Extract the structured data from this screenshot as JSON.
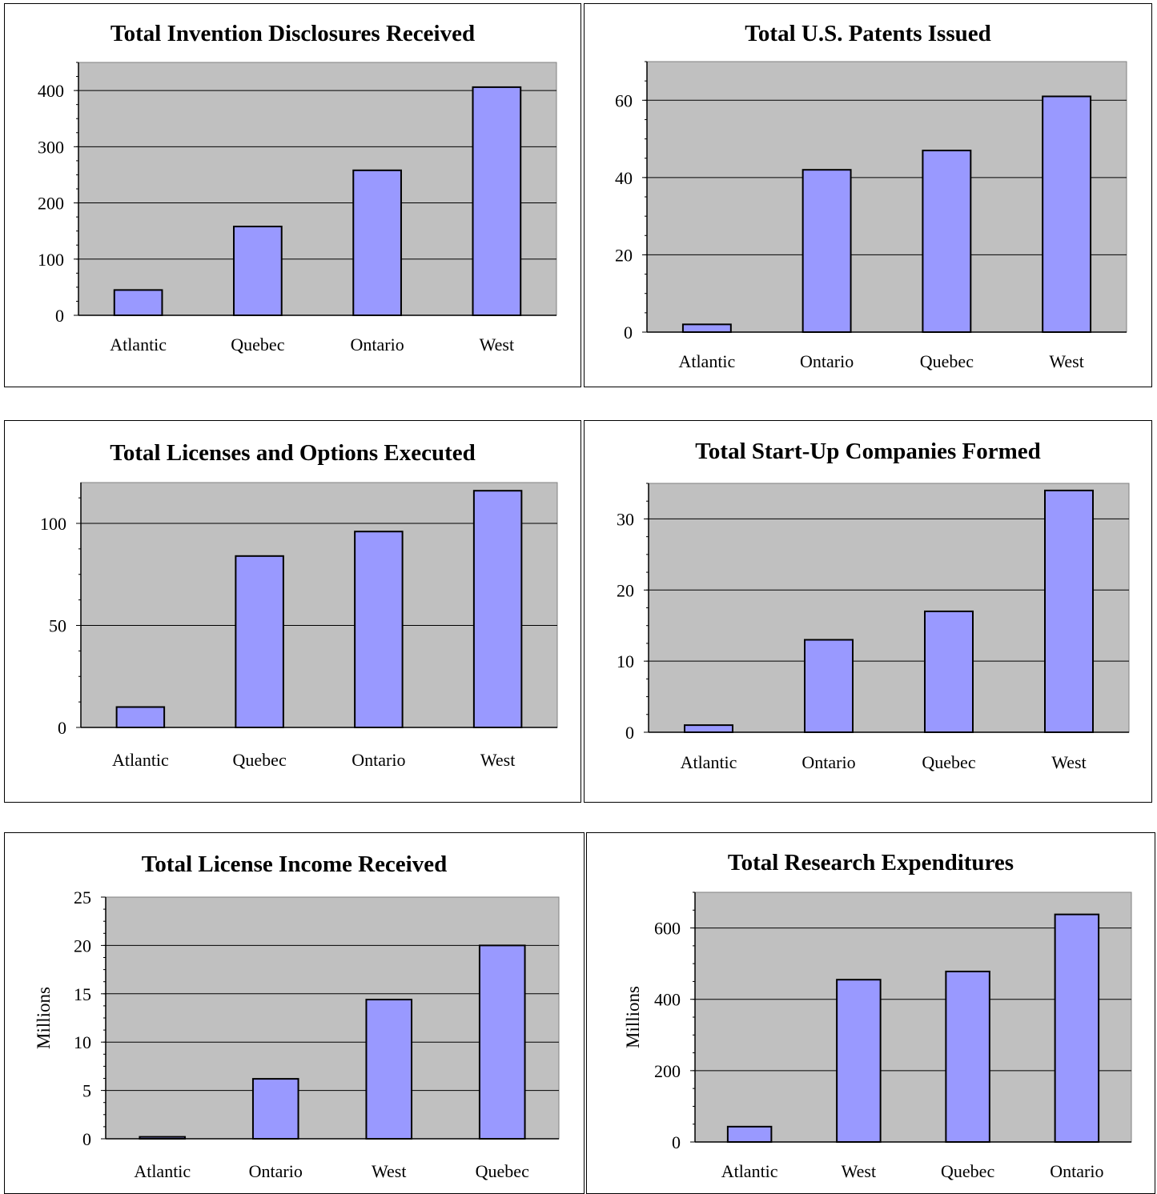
{
  "chart_data": [
    {
      "type": "bar",
      "title": "Total Invention Disclosures Received",
      "categories": [
        "Atlantic",
        "Quebec",
        "Ontario",
        "West"
      ],
      "values": [
        45,
        158,
        258,
        406
      ],
      "yticks": [
        0,
        100,
        200,
        300,
        400
      ],
      "ylim": [
        0,
        450
      ],
      "ylabel": "",
      "grid": true
    },
    {
      "type": "bar",
      "title": "Total U.S. Patents Issued",
      "categories": [
        "Atlantic",
        "Ontario",
        "Quebec",
        "West"
      ],
      "values": [
        2,
        42,
        47,
        61
      ],
      "yticks": [
        0,
        20,
        40,
        60
      ],
      "ylim": [
        0,
        70
      ],
      "ylabel": "",
      "grid": true
    },
    {
      "type": "bar",
      "title": "Total Licenses and Options Executed",
      "categories": [
        "Atlantic",
        "Quebec",
        "Ontario",
        "West"
      ],
      "values": [
        10,
        84,
        96,
        116
      ],
      "yticks": [
        0,
        50,
        100
      ],
      "ylim": [
        0,
        120
      ],
      "ylabel": "",
      "grid": true
    },
    {
      "type": "bar",
      "title": "Total Start-Up Companies Formed",
      "categories": [
        "Atlantic",
        "Ontario",
        "Quebec",
        "West"
      ],
      "values": [
        1,
        13,
        17,
        34
      ],
      "yticks": [
        0,
        10,
        20,
        30
      ],
      "ylim": [
        0,
        35
      ],
      "ylabel": "",
      "grid": true
    },
    {
      "type": "bar",
      "title": "Total License Income Received",
      "categories": [
        "Atlantic",
        "Ontario",
        "West",
        "Quebec"
      ],
      "values": [
        0.2,
        6.2,
        14.4,
        20
      ],
      "yticks": [
        0,
        5,
        10,
        15,
        20,
        25
      ],
      "ylim": [
        0,
        25
      ],
      "ylabel": "Millions",
      "grid": true
    },
    {
      "type": "bar",
      "title": "Total Research Expenditures",
      "categories": [
        "Atlantic",
        "West",
        "Quebec",
        "Ontario"
      ],
      "values": [
        43,
        455,
        478,
        638
      ],
      "yticks": [
        0,
        200,
        400,
        600
      ],
      "ylim": [
        0,
        700
      ],
      "ylabel": "Millions",
      "grid": true
    }
  ],
  "colors": {
    "plot_bg": "#c0c0c0",
    "bar_fill": "#9999ff",
    "bar_stroke": "#000000",
    "gridline": "#000000"
  }
}
